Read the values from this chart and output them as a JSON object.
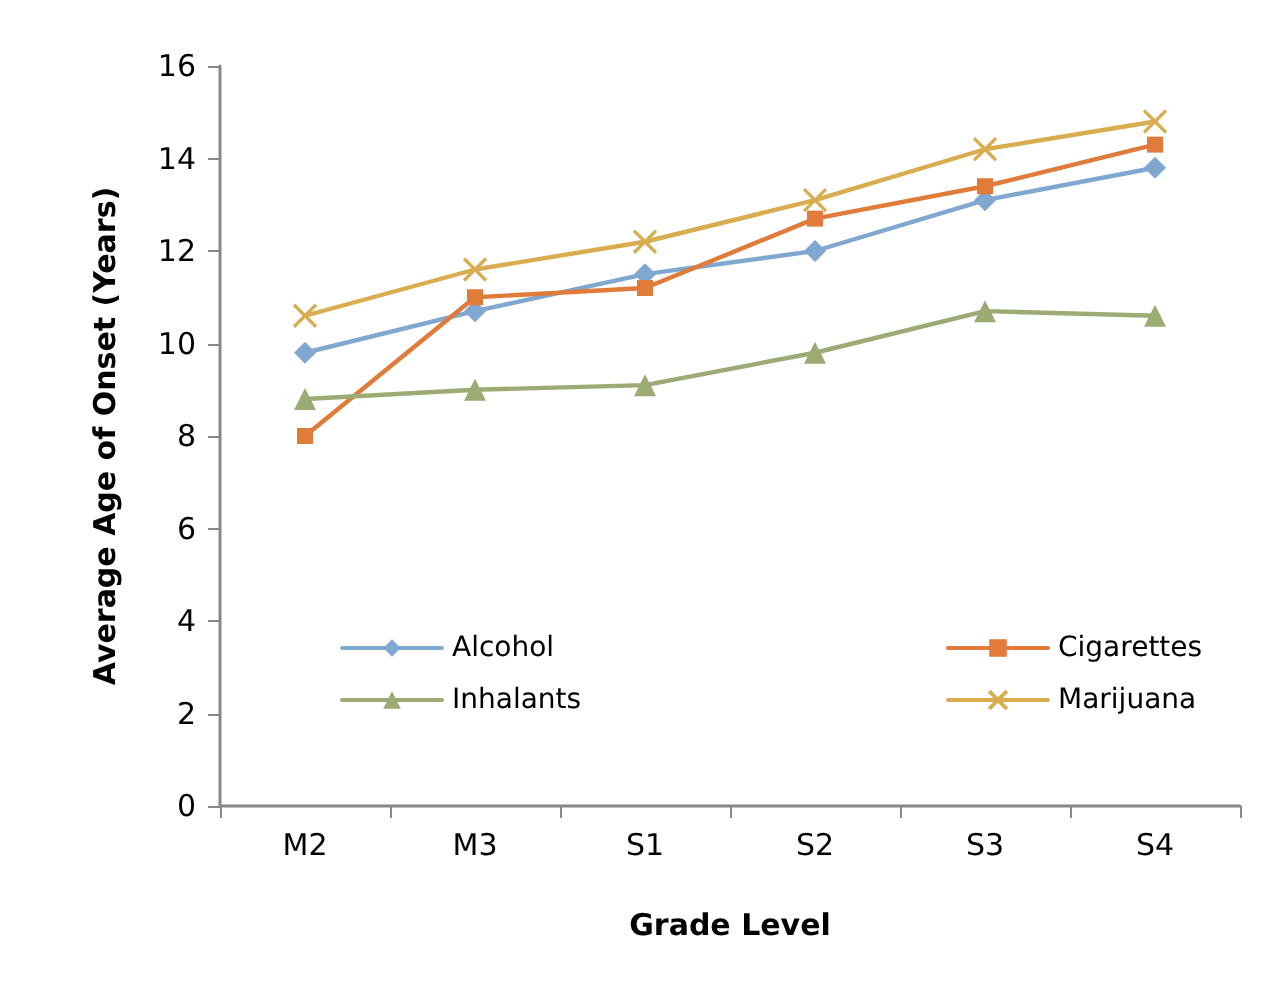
{
  "chart_data": {
    "type": "line",
    "xlabel": "Grade Level",
    "ylabel": "Average Age of Onset (Years)",
    "categories": [
      "M2",
      "M3",
      "S1",
      "S2",
      "S3",
      "S4"
    ],
    "series": [
      {
        "name": "Alcohol",
        "color": "#7fa7d0",
        "marker": "diamond",
        "values": [
          9.8,
          10.7,
          11.5,
          12.0,
          13.1,
          13.8
        ]
      },
      {
        "name": "Cigarettes",
        "color": "#e07b39",
        "marker": "square",
        "values": [
          8.0,
          11.0,
          11.2,
          12.7,
          13.4,
          14.3
        ]
      },
      {
        "name": "Inhalants",
        "color": "#9caa74",
        "marker": "triangle",
        "values": [
          8.8,
          9.0,
          9.1,
          9.8,
          10.7,
          10.6
        ]
      },
      {
        "name": "Marijuana",
        "color": "#d9ad4f",
        "marker": "cross",
        "values": [
          10.6,
          11.6,
          12.2,
          13.1,
          14.2,
          14.8
        ]
      }
    ],
    "ylim": [
      0,
      16
    ],
    "yticks": [
      0,
      2,
      4,
      6,
      8,
      10,
      12,
      14,
      16
    ],
    "grid": false,
    "legend": "bottom"
  }
}
